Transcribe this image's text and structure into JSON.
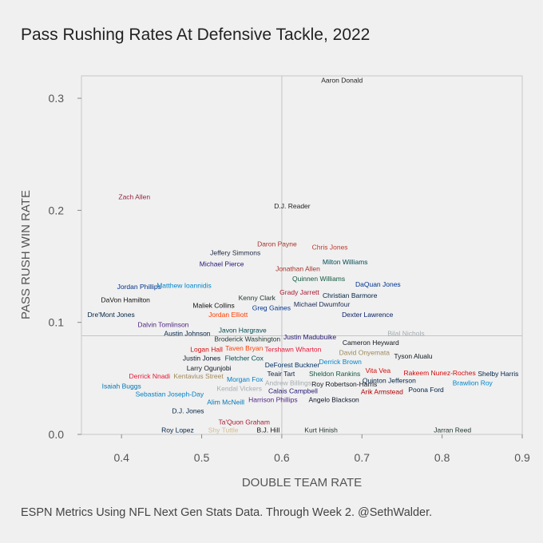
{
  "title": "Pass Rushing Rates At Defensive Tackle, 2022",
  "caption": "ESPN Metrics Using NFL Next Gen Stats Data. Through Week 2. @SethWalder.",
  "chart_data": {
    "type": "scatter",
    "title": "Pass Rushing Rates At Defensive Tackle, 2022",
    "xlabel": "DOUBLE TEAM RATE",
    "ylabel": "PASS RUSH WIN RATE",
    "xlim": [
      0.35,
      0.9
    ],
    "ylim": [
      0.0,
      0.32
    ],
    "xticks": [
      0.4,
      0.5,
      0.6,
      0.7,
      0.8,
      0.9
    ],
    "xtick_labels": [
      "0.4",
      "0.5",
      "0.6",
      "0.7",
      "0.8",
      "0.9"
    ],
    "yticks": [
      0.0,
      0.1,
      0.2,
      0.3
    ],
    "ytick_labels": [
      "0.0",
      "0.1",
      "0.2",
      "0.3"
    ],
    "reference_lines": {
      "x": 0.6,
      "y": 0.088
    },
    "grid": false,
    "points": [
      {
        "name": "Aaron Donald",
        "x": 0.675,
        "y": 0.316,
        "color": "#222222"
      },
      {
        "name": "Zach Allen",
        "x": 0.416,
        "y": 0.212,
        "color": "#97233f"
      },
      {
        "name": "D.J. Reader",
        "x": 0.613,
        "y": 0.204,
        "color": "#222222"
      },
      {
        "name": "Daron Payne",
        "x": 0.594,
        "y": 0.17,
        "color": "#a5322a"
      },
      {
        "name": "Chris Jones",
        "x": 0.66,
        "y": 0.167,
        "color": "#c0392b"
      },
      {
        "name": "Jeffery Simmons",
        "x": 0.542,
        "y": 0.162,
        "color": "#1f2a44"
      },
      {
        "name": "Milton Williams",
        "x": 0.679,
        "y": 0.154,
        "color": "#004c54"
      },
      {
        "name": "Michael Pierce",
        "x": 0.525,
        "y": 0.152,
        "color": "#241773"
      },
      {
        "name": "Jonathan Allen",
        "x": 0.62,
        "y": 0.148,
        "color": "#a5322a"
      },
      {
        "name": "Quinnen Williams",
        "x": 0.646,
        "y": 0.139,
        "color": "#125740"
      },
      {
        "name": "Jordan Phillips",
        "x": 0.422,
        "y": 0.132,
        "color": "#00338d"
      },
      {
        "name": "Matthew Ioannidis",
        "x": 0.478,
        "y": 0.133,
        "color": "#0085ca"
      },
      {
        "name": "DaQuan Jones",
        "x": 0.72,
        "y": 0.134,
        "color": "#00338d"
      },
      {
        "name": "Grady Jarrett",
        "x": 0.622,
        "y": 0.127,
        "color": "#a71930"
      },
      {
        "name": "Christian Barmore",
        "x": 0.685,
        "y": 0.124,
        "color": "#002244"
      },
      {
        "name": "DaVon Hamilton",
        "x": 0.405,
        "y": 0.12,
        "color": "#111111"
      },
      {
        "name": "Kenny Clark",
        "x": 0.569,
        "y": 0.122,
        "color": "#203731"
      },
      {
        "name": "Maliek Collins",
        "x": 0.515,
        "y": 0.115,
        "color": "#111111"
      },
      {
        "name": "Greg Gaines",
        "x": 0.587,
        "y": 0.113,
        "color": "#003594"
      },
      {
        "name": "Michael Dwumfour",
        "x": 0.65,
        "y": 0.116,
        "color": "#1a2a55"
      },
      {
        "name": "Dre'Mont Jones",
        "x": 0.387,
        "y": 0.107,
        "color": "#002244"
      },
      {
        "name": "Jordan Elliott",
        "x": 0.533,
        "y": 0.107,
        "color": "#ff3c00"
      },
      {
        "name": "Dexter Lawrence",
        "x": 0.707,
        "y": 0.107,
        "color": "#0b2265"
      },
      {
        "name": "Dalvin Tomlinson",
        "x": 0.452,
        "y": 0.098,
        "color": "#4f2683"
      },
      {
        "name": "Javon Hargrave",
        "x": 0.551,
        "y": 0.093,
        "color": "#004c54"
      },
      {
        "name": "Austin Johnson",
        "x": 0.482,
        "y": 0.09,
        "color": "#002244"
      },
      {
        "name": "Bilal Nichols",
        "x": 0.755,
        "y": 0.09,
        "color": "#a5acaf"
      },
      {
        "name": "Justin Madubuike",
        "x": 0.635,
        "y": 0.087,
        "color": "#241773"
      },
      {
        "name": "Broderick Washington",
        "x": 0.557,
        "y": 0.085,
        "color": "#203731"
      },
      {
        "name": "Cameron Heyward",
        "x": 0.711,
        "y": 0.082,
        "color": "#101820"
      },
      {
        "name": "Logan Hall",
        "x": 0.506,
        "y": 0.076,
        "color": "#d50a0a"
      },
      {
        "name": "Taven Bryan",
        "x": 0.553,
        "y": 0.077,
        "color": "#ff3c00"
      },
      {
        "name": "Tershawn Wharton",
        "x": 0.614,
        "y": 0.076,
        "color": "#e31837"
      },
      {
        "name": "David Onyemata",
        "x": 0.703,
        "y": 0.073,
        "color": "#9f8958"
      },
      {
        "name": "Tyson Alualu",
        "x": 0.764,
        "y": 0.07,
        "color": "#101820"
      },
      {
        "name": "Justin Jones",
        "x": 0.5,
        "y": 0.068,
        "color": "#0b162a"
      },
      {
        "name": "Fletcher Cox",
        "x": 0.553,
        "y": 0.068,
        "color": "#004c54"
      },
      {
        "name": "DeForest Buckner",
        "x": 0.613,
        "y": 0.062,
        "color": "#002c5f"
      },
      {
        "name": "Derrick Brown",
        "x": 0.673,
        "y": 0.065,
        "color": "#0085ca"
      },
      {
        "name": "Larry Ogunjobi",
        "x": 0.509,
        "y": 0.059,
        "color": "#101820"
      },
      {
        "name": "Vita Vea",
        "x": 0.72,
        "y": 0.057,
        "color": "#d50a0a"
      },
      {
        "name": "Rakeem Nunez-Roches",
        "x": 0.797,
        "y": 0.055,
        "color": "#d50a0a"
      },
      {
        "name": "Shelby Harris",
        "x": 0.87,
        "y": 0.054,
        "color": "#002244"
      },
      {
        "name": "Teair Tart",
        "x": 0.599,
        "y": 0.054,
        "color": "#0c2340"
      },
      {
        "name": "Sheldon Rankins",
        "x": 0.666,
        "y": 0.054,
        "color": "#125740"
      },
      {
        "name": "Derrick Nnadi",
        "x": 0.435,
        "y": 0.052,
        "color": "#e31837"
      },
      {
        "name": "Kentavius Street",
        "x": 0.496,
        "y": 0.052,
        "color": "#9f8958"
      },
      {
        "name": "Morgan Fox",
        "x": 0.554,
        "y": 0.049,
        "color": "#0080c6"
      },
      {
        "name": "Quinton Jefferson",
        "x": 0.734,
        "y": 0.048,
        "color": "#002244"
      },
      {
        "name": "Brawlion Roy",
        "x": 0.838,
        "y": 0.046,
        "color": "#0085ca"
      },
      {
        "name": "Andrew Billings",
        "x": 0.608,
        "y": 0.046,
        "color": "#a5acaf"
      },
      {
        "name": "Roy Robertson-Harris",
        "x": 0.678,
        "y": 0.045,
        "color": "#101820"
      },
      {
        "name": "Isaiah Buggs",
        "x": 0.4,
        "y": 0.043,
        "color": "#0076b6"
      },
      {
        "name": "Kendal Vickers",
        "x": 0.547,
        "y": 0.041,
        "color": "#a5acaf"
      },
      {
        "name": "Poona Ford",
        "x": 0.78,
        "y": 0.04,
        "color": "#002244"
      },
      {
        "name": "Calais Campbell",
        "x": 0.614,
        "y": 0.039,
        "color": "#241773"
      },
      {
        "name": "Arik Armstead",
        "x": 0.725,
        "y": 0.038,
        "color": "#aa0000"
      },
      {
        "name": "Sebastian Joseph-Day",
        "x": 0.46,
        "y": 0.036,
        "color": "#0080c6"
      },
      {
        "name": "Harrison Phillips",
        "x": 0.589,
        "y": 0.031,
        "color": "#4f2683"
      },
      {
        "name": "Angelo Blackson",
        "x": 0.665,
        "y": 0.031,
        "color": "#0b162a"
      },
      {
        "name": "Alim McNeill",
        "x": 0.53,
        "y": 0.029,
        "color": "#0076b6"
      },
      {
        "name": "D.J. Jones",
        "x": 0.483,
        "y": 0.021,
        "color": "#002244"
      },
      {
        "name": "Ta'Quon Graham",
        "x": 0.553,
        "y": 0.011,
        "color": "#a71930"
      },
      {
        "name": "Roy Lopez",
        "x": 0.47,
        "y": 0.004,
        "color": "#002244"
      },
      {
        "name": "Shy Tuttle",
        "x": 0.527,
        "y": 0.004,
        "color": "#d3bc8d"
      },
      {
        "name": "B.J. Hill",
        "x": 0.583,
        "y": 0.004,
        "color": "#111111"
      },
      {
        "name": "Kurt Hinish",
        "x": 0.649,
        "y": 0.004,
        "color": "#203731"
      },
      {
        "name": "Jarran Reed",
        "x": 0.813,
        "y": 0.004,
        "color": "#203731"
      }
    ]
  }
}
